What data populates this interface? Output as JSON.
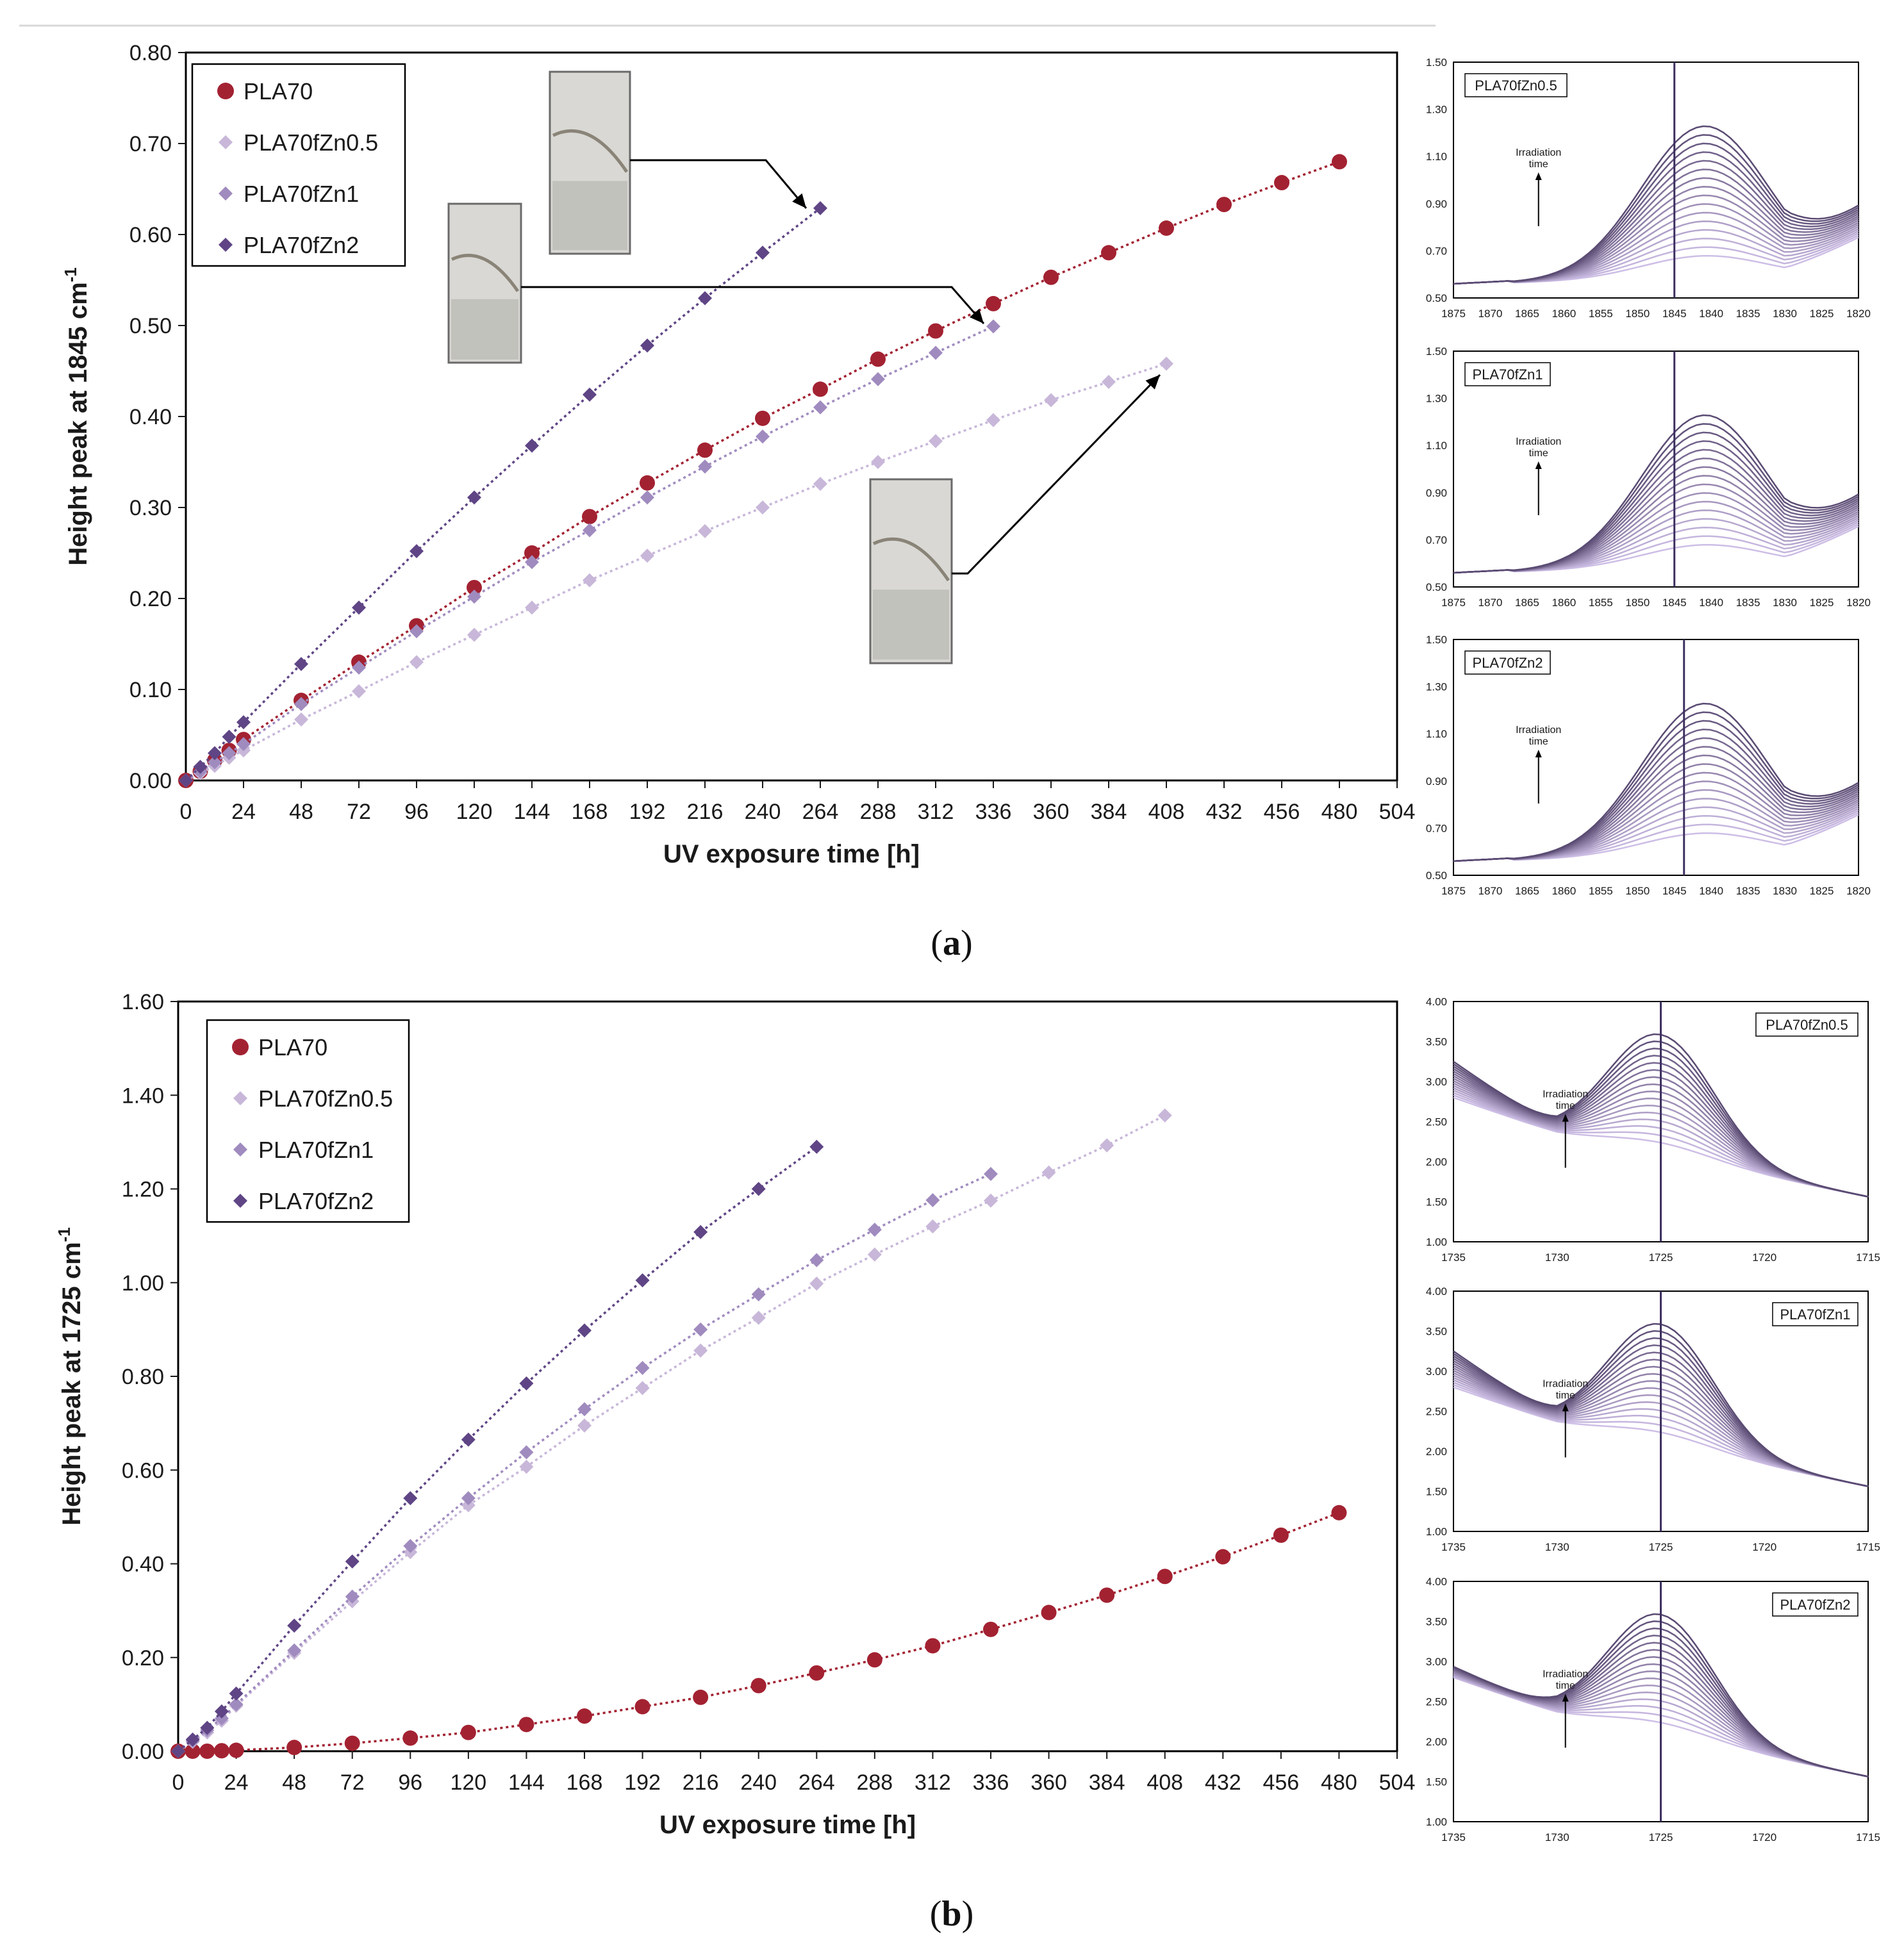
{
  "colors": {
    "PLA70": "#a32232",
    "PLA70fZn0.5": "#c8b7d9",
    "PLA70fZn1": "#a08bbf",
    "PLA70fZn2": "#5f4585",
    "axis": "#1a1a1a",
    "frame": "#000000"
  },
  "chart_data": [
    {
      "id": "a",
      "type": "line",
      "caption_letter": "a",
      "xlabel": "UV exposure time [h]",
      "ylabel": "Height peak at 1845 cm",
      "ylabel_sup": "-1",
      "xlim": [
        0,
        504
      ],
      "ylim": [
        0,
        0.8
      ],
      "xticks": [
        "0",
        "24",
        "48",
        "72",
        "96",
        "120",
        "144",
        "168",
        "192",
        "216",
        "240",
        "264",
        "288",
        "312",
        "336",
        "360",
        "384",
        "408",
        "432",
        "456",
        "480",
        "504"
      ],
      "yticks": [
        "0.00",
        "0.10",
        "0.20",
        "0.30",
        "0.40",
        "0.50",
        "0.60",
        "0.70",
        "0.80"
      ],
      "legend": [
        "PLA70",
        "PLA70fZn0.5",
        "PLA70fZn1",
        "PLA70fZn2"
      ],
      "series": [
        {
          "name": "PLA70",
          "marker": "circle",
          "x": [
            0,
            6,
            12,
            18,
            24,
            48,
            72,
            96,
            120,
            144,
            168,
            192,
            216,
            240,
            264,
            288,
            312,
            336,
            360,
            384,
            408,
            432,
            456,
            480
          ],
          "y": [
            0,
            0.01,
            0.022,
            0.033,
            0.045,
            0.088,
            0.13,
            0.17,
            0.212,
            0.25,
            0.29,
            0.327,
            0.363,
            0.398,
            0.43,
            0.463,
            0.494,
            0.524,
            0.553,
            0.58,
            0.607,
            0.633,
            0.657,
            0.68
          ]
        },
        {
          "name": "PLA70fZn0.5",
          "marker": "diamond",
          "x": [
            0,
            6,
            12,
            18,
            24,
            48,
            72,
            96,
            120,
            144,
            168,
            192,
            216,
            240,
            264,
            288,
            312,
            336,
            360,
            384,
            408
          ],
          "y": [
            0,
            0.008,
            0.016,
            0.025,
            0.033,
            0.067,
            0.098,
            0.13,
            0.16,
            0.19,
            0.22,
            0.247,
            0.274,
            0.3,
            0.326,
            0.35,
            0.373,
            0.396,
            0.418,
            0.438,
            0.458
          ]
        },
        {
          "name": "PLA70fZn1",
          "marker": "diamond",
          "x": [
            0,
            6,
            12,
            18,
            24,
            48,
            72,
            96,
            120,
            144,
            168,
            192,
            216,
            240,
            264,
            288,
            312,
            336
          ],
          "y": [
            0,
            0.01,
            0.02,
            0.03,
            0.04,
            0.084,
            0.124,
            0.164,
            0.202,
            0.24,
            0.275,
            0.311,
            0.345,
            0.378,
            0.41,
            0.441,
            0.47,
            0.499
          ]
        },
        {
          "name": "PLA70fZn2",
          "marker": "diamond",
          "x": [
            0,
            6,
            12,
            18,
            24,
            48,
            72,
            96,
            120,
            144,
            168,
            192,
            216,
            240,
            264
          ],
          "y": [
            0,
            0.015,
            0.03,
            0.048,
            0.064,
            0.128,
            0.19,
            0.252,
            0.311,
            0.368,
            0.424,
            0.478,
            0.53,
            0.58,
            0.629
          ]
        }
      ],
      "insets": [
        {
          "name": "PLA70fZn0.5",
          "xticks": [
            "1875",
            "1870",
            "1865",
            "1860",
            "1855",
            "1850",
            "1845",
            "1840",
            "1835",
            "1830",
            "1825",
            "1820"
          ],
          "yticks": [
            "0.50",
            "0.70",
            "0.90",
            "1.10",
            "1.30",
            "1.50"
          ],
          "annotation_line1": "Irradiation",
          "annotation_line2": "time"
        },
        {
          "name": "PLA70fZn1",
          "xticks": [
            "1875",
            "1870",
            "1865",
            "1860",
            "1855",
            "1850",
            "1845",
            "1840",
            "1835",
            "1830",
            "1825",
            "1820"
          ],
          "yticks": [
            "0.50",
            "0.70",
            "0.90",
            "1.10",
            "1.30",
            "1.50"
          ],
          "annotation_line1": "Irradiation",
          "annotation_line2": "time"
        },
        {
          "name": "PLA70fZn2",
          "xticks": [
            "1875",
            "1870",
            "1865",
            "1860",
            "1855",
            "1850",
            "1845",
            "1840",
            "1835",
            "1830",
            "1825",
            "1820"
          ],
          "yticks": [
            "0.50",
            "0.70",
            "0.90",
            "1.10",
            "1.30",
            "1.50"
          ],
          "annotation_line1": "Irradiation",
          "annotation_line2": "time"
        }
      ]
    },
    {
      "id": "b",
      "type": "line",
      "caption_letter": "b",
      "xlabel": "UV exposure time [h]",
      "ylabel": "Height peak at 1725 cm",
      "ylabel_sup": "-1",
      "xlim": [
        0,
        504
      ],
      "ylim": [
        0,
        1.6
      ],
      "xticks": [
        "0",
        "24",
        "48",
        "72",
        "96",
        "120",
        "144",
        "168",
        "192",
        "216",
        "240",
        "264",
        "288",
        "312",
        "336",
        "360",
        "384",
        "408",
        "432",
        "456",
        "480",
        "504"
      ],
      "yticks": [
        "0.00",
        "0.20",
        "0.40",
        "0.60",
        "0.80",
        "1.00",
        "1.20",
        "1.40",
        "1.60"
      ],
      "legend": [
        "PLA70",
        "PLA70fZn0.5",
        "PLA70fZn1",
        "PLA70fZn2"
      ],
      "series": [
        {
          "name": "PLA70",
          "marker": "circle",
          "x": [
            0,
            6,
            12,
            18,
            24,
            48,
            72,
            96,
            120,
            144,
            168,
            192,
            216,
            240,
            264,
            288,
            312,
            336,
            360,
            384,
            408,
            432,
            456,
            480
          ],
          "y": [
            0,
            0,
            0,
            0.001,
            0.002,
            0.008,
            0.017,
            0.028,
            0.04,
            0.057,
            0.075,
            0.095,
            0.115,
            0.14,
            0.167,
            0.195,
            0.225,
            0.26,
            0.296,
            0.333,
            0.373,
            0.415,
            0.461,
            0.509
          ]
        },
        {
          "name": "PLA70fZn0.5",
          "marker": "diamond",
          "x": [
            0,
            6,
            12,
            18,
            24,
            48,
            72,
            96,
            120,
            144,
            168,
            192,
            216,
            240,
            264,
            288,
            312,
            336,
            360,
            384,
            408
          ],
          "y": [
            0,
            0.02,
            0.04,
            0.065,
            0.097,
            0.21,
            0.32,
            0.425,
            0.525,
            0.607,
            0.695,
            0.775,
            0.855,
            0.925,
            0.998,
            1.06,
            1.12,
            1.175,
            1.235,
            1.293,
            1.357
          ]
        },
        {
          "name": "PLA70fZn1",
          "marker": "diamond",
          "x": [
            0,
            6,
            12,
            18,
            24,
            48,
            72,
            96,
            120,
            144,
            168,
            192,
            216,
            240,
            264,
            288,
            312,
            336
          ],
          "y": [
            0,
            0.022,
            0.045,
            0.07,
            0.1,
            0.215,
            0.33,
            0.438,
            0.54,
            0.638,
            0.73,
            0.818,
            0.9,
            0.975,
            1.048,
            1.113,
            1.176,
            1.232
          ]
        },
        {
          "name": "PLA70fZn2",
          "marker": "diamond",
          "x": [
            0,
            6,
            12,
            18,
            24,
            48,
            72,
            96,
            120,
            144,
            168,
            192,
            216,
            240,
            264
          ],
          "y": [
            0,
            0.025,
            0.05,
            0.085,
            0.123,
            0.268,
            0.405,
            0.54,
            0.665,
            0.785,
            0.898,
            1.005,
            1.108,
            1.2,
            1.29
          ]
        }
      ],
      "insets": [
        {
          "name": "PLA70fZn0.5",
          "xticks": [
            "1735",
            "1730",
            "1725",
            "1720",
            "1715"
          ],
          "yticks": [
            "1.00",
            "1.50",
            "2.00",
            "2.50",
            "3.00",
            "3.50",
            "4.00"
          ],
          "annotation_line1": "Irradiation",
          "annotation_line2": "time"
        },
        {
          "name": "PLA70fZn1",
          "xticks": [
            "1735",
            "1730",
            "1725",
            "1720",
            "1715"
          ],
          "yticks": [
            "1.00",
            "1.50",
            "2.00",
            "2.50",
            "3.00",
            "3.50",
            "4.00"
          ],
          "annotation_line1": "Irradiation",
          "annotation_line2": "time"
        },
        {
          "name": "PLA70fZn2",
          "xticks": [
            "1735",
            "1730",
            "1725",
            "1720",
            "1715"
          ],
          "yticks": [
            "1.00",
            "1.50",
            "2.00",
            "2.50",
            "3.00",
            "3.50",
            "4.00"
          ],
          "annotation_line1": "Irradiation",
          "annotation_line2": "time"
        }
      ]
    }
  ]
}
